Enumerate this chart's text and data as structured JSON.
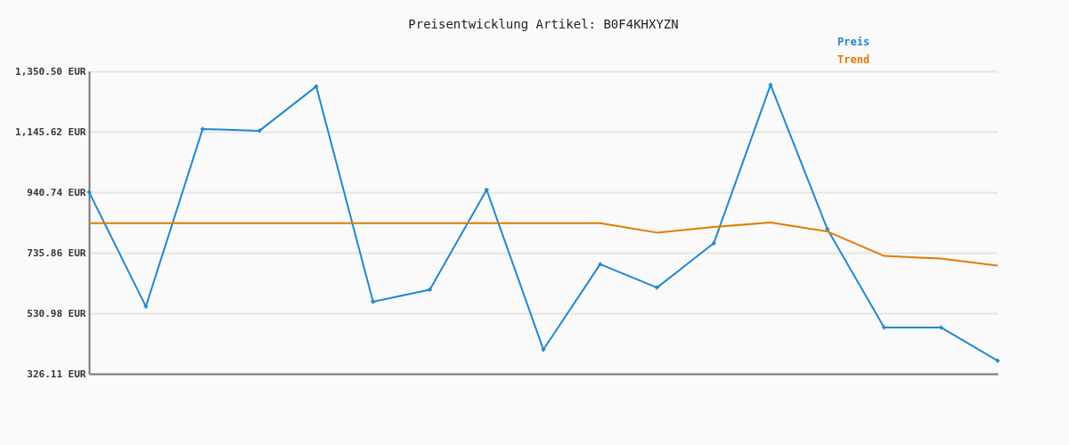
{
  "chart_data": {
    "type": "line",
    "title": "Preisentwicklung Artikel: B0F4KHXYZN",
    "categories": [
      null,
      null,
      null,
      null,
      null,
      null,
      null,
      null,
      null,
      null,
      null,
      null,
      null,
      null,
      null,
      null,
      null
    ],
    "series": [
      {
        "name": "Preis",
        "color": "#2288d0",
        "marker": "cross",
        "values": [
          941,
          554,
          1155,
          1149,
          1299,
          570,
          611,
          949,
          408,
          697,
          618,
          768,
          1304,
          816,
          483,
          483,
          370
        ]
      },
      {
        "name": "Trend",
        "color": "#e07c00",
        "marker": "none",
        "values": [
          836,
          836,
          836,
          836,
          836,
          836,
          836,
          836,
          836,
          836,
          804,
          823,
          838,
          808,
          725,
          716,
          692
        ]
      }
    ],
    "ylim": [
      326.11,
      1350.5
    ],
    "yticks": [
      {
        "value": 326.11,
        "label": "326.11 EUR"
      },
      {
        "value": 530.98,
        "label": "530.98 EUR"
      },
      {
        "value": 735.86,
        "label": "735.86 EUR"
      },
      {
        "value": 940.74,
        "label": "940.74 EUR"
      },
      {
        "value": 1145.62,
        "label": "1,145.62 EUR"
      },
      {
        "value": 1350.5,
        "label": "1,350.50 EUR"
      }
    ],
    "grid": "y",
    "legend": "top right",
    "tick_labels": "y",
    "line_style": "solid"
  }
}
